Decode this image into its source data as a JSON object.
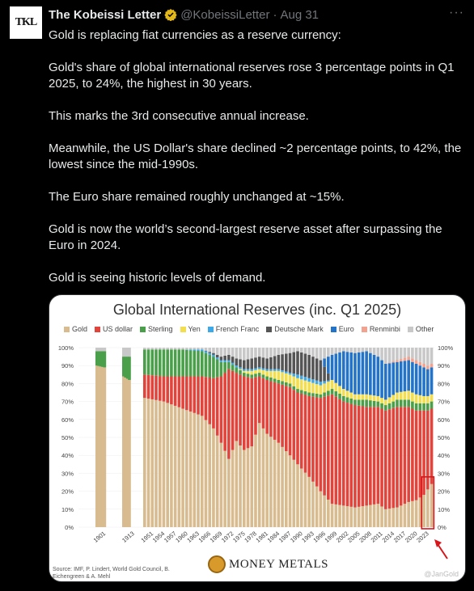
{
  "tweet": {
    "avatar_text": "TKL",
    "author_name": "The Kobeissi Letter",
    "handle": "@KobeissiLetter",
    "separator": "·",
    "date": "Aug 31",
    "more_label": "···",
    "paragraphs": [
      "Gold is replacing fiat currencies as a reserve currency:",
      "Gold's share of global international reserves rose 3 percentage points in Q1 2025, to 24%, the highest in 30 years.",
      "This marks the 3rd consecutive annual increase.",
      "Meanwhile, the US Dollar's share declined ~2 percentage points, to 42%, the lowest since the mid-1990s.",
      "The Euro share remained roughly unchanged at ~15%.",
      "Gold is now the world’s second-largest reserve asset after surpassing the Euro in 2024.",
      "Gold is seeing historic levels of demand."
    ]
  },
  "image": {
    "source_note": "Source: IMF, P. Lindert, World Gold Council, B. Eichengreen & A. Mehl",
    "logo_text": "MONEY METALS",
    "credit": "@JanGold"
  },
  "colors": {
    "gold": "#d8bb8f",
    "usd": "#e2433a",
    "sterling": "#4aa04a",
    "yen": "#f3de4f",
    "franc": "#3fa8e6",
    "mark": "#555555",
    "euro": "#2373c8",
    "renminbi": "#f2a38f",
    "other": "#c8c8c8",
    "highlight": "#d9151b"
  },
  "chart_data": {
    "type": "bar",
    "stacked": true,
    "title": "Global International Reserves (inc. Q1 2025)",
    "y_ticks": [
      "100%",
      "90%",
      "80%",
      "70%",
      "60%",
      "50%",
      "40%",
      "30%",
      "20%",
      "10%",
      "0%"
    ],
    "ylim": [
      0,
      100
    ],
    "x_tick_labels": [
      "1901",
      "1913",
      "1951",
      "1954",
      "1957",
      "1960",
      "1963",
      "1966",
      "1969",
      "1972",
      "1975",
      "1978",
      "1981",
      "1984",
      "1987",
      "1990",
      "1993",
      "1996",
      "1999",
      "2002",
      "2005",
      "2008",
      "2011",
      "2014",
      "2017",
      "2020",
      "2023"
    ],
    "series_order": [
      "Gold",
      "US dollar",
      "Sterling",
      "Yen",
      "French Franc",
      "Deutsche Mark",
      "Euro",
      "Renminbi",
      "Other"
    ],
    "legend": [
      "Gold",
      "US dollar",
      "Sterling",
      "Yen",
      "French Franc",
      "Deutsche Mark",
      "Euro",
      "Renminbi",
      "Other"
    ],
    "groups": [
      {
        "years": [
          1899,
          1903
        ],
        "keys": [
          [
            1899,
            90,
            0,
            8,
            0,
            0,
            0,
            0,
            0,
            2
          ],
          [
            1903,
            89,
            0,
            9,
            0,
            0,
            0,
            0,
            0,
            2
          ]
        ]
      },
      {
        "years": [
          1910,
          1913
        ],
        "keys": [
          [
            1910,
            84,
            0,
            11,
            0,
            0,
            0,
            0,
            0,
            5
          ],
          [
            1913,
            82,
            0,
            13,
            0,
            0,
            0,
            0,
            0,
            5
          ]
        ]
      },
      {
        "years": [
          1950,
          2025
        ],
        "keys": [
          [
            1950,
            72,
            13,
            14,
            0,
            0,
            0,
            0,
            0,
            1
          ],
          [
            1955,
            70,
            14,
            15,
            0,
            0,
            0,
            0,
            0,
            1
          ],
          [
            1960,
            66,
            18,
            15,
            0,
            0,
            0,
            0,
            0,
            1
          ],
          [
            1965,
            62,
            22,
            14,
            0,
            1,
            0,
            0,
            0,
            1
          ],
          [
            1968,
            55,
            28,
            12,
            0,
            1,
            1,
            0,
            0,
            3
          ],
          [
            1970,
            47,
            37,
            8,
            0,
            1,
            2,
            0,
            0,
            5
          ],
          [
            1972,
            38,
            50,
            4,
            0,
            1,
            3,
            0,
            0,
            4
          ],
          [
            1974,
            48,
            38,
            3,
            0,
            1,
            4,
            0,
            0,
            6
          ],
          [
            1976,
            43,
            41,
            2,
            1,
            1,
            5,
            0,
            0,
            7
          ],
          [
            1978,
            45,
            38,
            2,
            2,
            1,
            6,
            0,
            0,
            6
          ],
          [
            1980,
            58,
            26,
            2,
            2,
            1,
            6,
            0,
            0,
            5
          ],
          [
            1982,
            52,
            30,
            2,
            3,
            1,
            6,
            0,
            0,
            6
          ],
          [
            1985,
            47,
            33,
            2,
            5,
            1,
            8,
            0,
            0,
            4
          ],
          [
            1988,
            40,
            38,
            2,
            5,
            1,
            11,
            0,
            0,
            3
          ],
          [
            1990,
            35,
            40,
            2,
            6,
            2,
            13,
            0,
            0,
            2
          ],
          [
            1993,
            28,
            45,
            2,
            6,
            2,
            13,
            0,
            0,
            4
          ],
          [
            1996,
            20,
            52,
            2,
            5,
            2,
            12,
            0,
            0,
            7
          ],
          [
            1999,
            13,
            61,
            3,
            5,
            0,
            0,
            14,
            0,
            4
          ],
          [
            2002,
            12,
            58,
            3,
            4,
            0,
            0,
            21,
            0,
            2
          ],
          [
            2005,
            11,
            57,
            3,
            3,
            0,
            0,
            23,
            0,
            3
          ],
          [
            2008,
            12,
            55,
            4,
            3,
            0,
            0,
            24,
            0,
            2
          ],
          [
            2011,
            13,
            54,
            3,
            3,
            0,
            0,
            22,
            0,
            5
          ],
          [
            2013,
            10,
            55,
            3,
            3,
            0,
            0,
            20,
            0,
            9
          ],
          [
            2016,
            11,
            56,
            4,
            4,
            0,
            0,
            17,
            1,
            7
          ],
          [
            2019,
            14,
            53,
            4,
            5,
            0,
            0,
            17,
            2,
            5
          ],
          [
            2021,
            15,
            50,
            4,
            5,
            0,
            0,
            17,
            2,
            7
          ],
          [
            2023,
            18,
            47,
            4,
            4,
            0,
            0,
            16,
            2,
            9
          ],
          [
            2024,
            21,
            44,
            4,
            4,
            0,
            0,
            15,
            2,
            10
          ],
          [
            2025,
            24,
            42,
            4,
            4,
            0,
            0,
            15,
            2,
            9
          ]
        ]
      }
    ],
    "highlight": {
      "from": 2023,
      "to": 2025,
      "label": "2023"
    },
    "annotation": "highlighted box and arrow pointing at the most recent years of gold share"
  }
}
